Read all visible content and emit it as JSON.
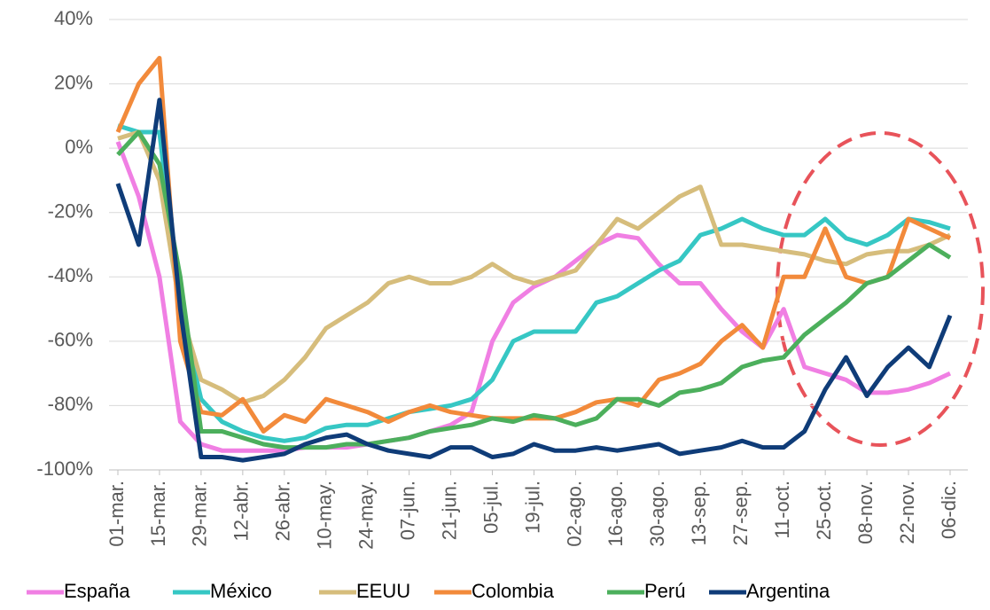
{
  "chart_data": {
    "type": "line",
    "categories": [
      "01-mar.",
      null,
      "15-mar.",
      null,
      "29-mar.",
      null,
      "12-abr.",
      null,
      "26-abr.",
      null,
      "10-may.",
      null,
      "24-may.",
      null,
      "07-jun.",
      null,
      "21-jun.",
      null,
      "05-jul.",
      null,
      "19-jul.",
      null,
      "02-ago.",
      null,
      "16-ago.",
      null,
      "30-ago.",
      null,
      "13-sep.",
      null,
      "27-sep.",
      null,
      "11-oct.",
      null,
      "25-oct.",
      null,
      "08-nov.",
      null,
      "22-nov.",
      null,
      "06-dic."
    ],
    "series": [
      {
        "name": "España",
        "color": "#f07fe3",
        "values": [
          2,
          -15,
          -40,
          -85,
          -92,
          -94,
          -94,
          -94,
          -94,
          -93,
          -93,
          -93,
          -92,
          -91,
          -90,
          -88,
          -86,
          -82,
          -60,
          -48,
          -43,
          -40,
          -35,
          -30,
          -27,
          -28,
          -36,
          -42,
          -42,
          -50,
          -57,
          -62,
          -50,
          -68,
          -70,
          -72,
          -76,
          -76,
          -75,
          -73,
          -70
        ]
      },
      {
        "name": "México",
        "color": "#36c7c4",
        "values": [
          7,
          5,
          5,
          -50,
          -78,
          -85,
          -88,
          -90,
          -91,
          -90,
          -87,
          -86,
          -86,
          -84,
          -82,
          -81,
          -80,
          -78,
          -72,
          -60,
          -57,
          -57,
          -57,
          -48,
          -46,
          -42,
          -38,
          -35,
          -27,
          -25,
          -22,
          -25,
          -27,
          -27,
          -22,
          -28,
          -30,
          -27,
          -22,
          -23,
          -25
        ]
      },
      {
        "name": "EEUU",
        "color": "#d6bd7c",
        "values": [
          3,
          5,
          -10,
          -50,
          -72,
          -75,
          -79,
          -77,
          -72,
          -65,
          -56,
          -52,
          -48,
          -42,
          -40,
          -42,
          -42,
          -40,
          -36,
          -40,
          -42,
          -40,
          -38,
          -30,
          -22,
          -25,
          -20,
          -15,
          -12,
          -30,
          -30,
          -31,
          -32,
          -33,
          -35,
          -36,
          -33,
          -32,
          -32,
          -30,
          -27
        ]
      },
      {
        "name": "Colombia",
        "color": "#f28a3b",
        "values": [
          5,
          20,
          28,
          -60,
          -82,
          -83,
          -78,
          -88,
          -83,
          -85,
          -78,
          -80,
          -82,
          -85,
          -82,
          -80,
          -82,
          -83,
          -84,
          -84,
          -84,
          -84,
          -82,
          -79,
          -78,
          -80,
          -72,
          -70,
          -67,
          -60,
          -55,
          -62,
          -40,
          -40,
          -25,
          -40,
          -42,
          -40,
          -22,
          -25,
          -28
        ]
      },
      {
        "name": "Perú",
        "color": "#4caf5c",
        "values": [
          -2,
          5,
          -5,
          -40,
          -88,
          -88,
          -90,
          -92,
          -93,
          -93,
          -93,
          -92,
          -92,
          -91,
          -90,
          -88,
          -87,
          -86,
          -84,
          -85,
          -83,
          -84,
          -86,
          -84,
          -78,
          -78,
          -80,
          -76,
          -75,
          -73,
          -68,
          -66,
          -65,
          -58,
          -53,
          -48,
          -42,
          -40,
          -35,
          -30,
          -34
        ]
      },
      {
        "name": "Argentina",
        "color": "#0f3c78",
        "values": [
          -11,
          -30,
          15,
          -50,
          -96,
          -96,
          -97,
          -96,
          -95,
          -92,
          -90,
          -89,
          -92,
          -94,
          -95,
          -96,
          -93,
          -93,
          -96,
          -95,
          -92,
          -94,
          -94,
          -93,
          -94,
          -93,
          -92,
          -95,
          -94,
          -93,
          -91,
          -93,
          -93,
          -88,
          -75,
          -65,
          -77,
          -68,
          -62,
          -68,
          -52
        ]
      }
    ],
    "ylim": [
      -100,
      40
    ],
    "yticks": [
      {
        "value": -100,
        "label": "-100%"
      },
      {
        "value": -80,
        "label": "-80%"
      },
      {
        "value": -60,
        "label": "-60%"
      },
      {
        "value": -40,
        "label": "-40%"
      },
      {
        "value": -20,
        "label": "-20%"
      },
      {
        "value": 0,
        "label": "0%"
      },
      {
        "value": 20,
        "label": "20%"
      },
      {
        "value": 40,
        "label": "40%"
      }
    ],
    "grid": true,
    "legend": "bottom"
  }
}
